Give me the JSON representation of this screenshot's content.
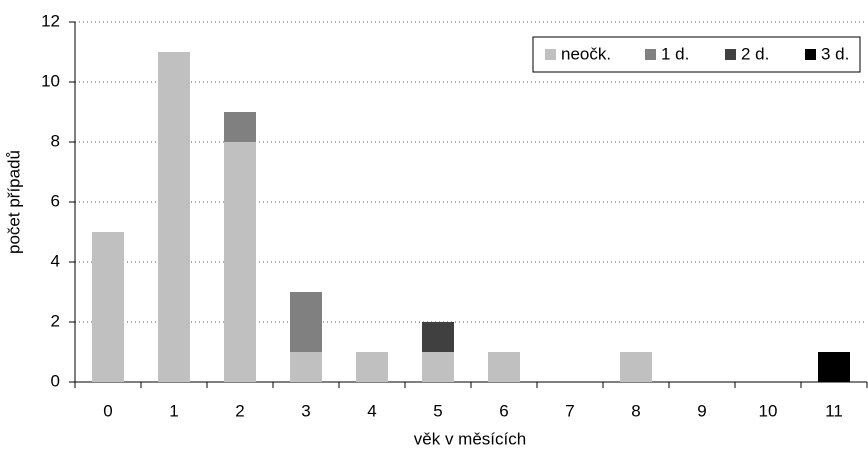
{
  "chart_data": {
    "type": "bar",
    "stacked": true,
    "x_label": "věk v měsících",
    "y_label": "počet případů",
    "categories": [
      "0",
      "1",
      "2",
      "3",
      "4",
      "5",
      "6",
      "7",
      "8",
      "9",
      "10",
      "11"
    ],
    "series": [
      {
        "name": "neočk.",
        "color": "#c0c0c0",
        "values": [
          5,
          11,
          8,
          1,
          1,
          1,
          1,
          0,
          1,
          0,
          0,
          0
        ]
      },
      {
        "name": "1 d.",
        "color": "#808080",
        "values": [
          0,
          0,
          1,
          2,
          0,
          0,
          0,
          0,
          0,
          0,
          0,
          0
        ]
      },
      {
        "name": "2 d.",
        "color": "#404040",
        "values": [
          0,
          0,
          0,
          0,
          0,
          1,
          0,
          0,
          0,
          0,
          0,
          0
        ]
      },
      {
        "name": "3 d.",
        "color": "#000000",
        "values": [
          0,
          0,
          0,
          0,
          0,
          0,
          0,
          0,
          0,
          0,
          0,
          1
        ]
      }
    ],
    "ylim": [
      0,
      12
    ],
    "yticks": [
      0,
      2,
      4,
      6,
      8,
      10,
      12
    ],
    "grid": true,
    "legend": "top-right"
  }
}
